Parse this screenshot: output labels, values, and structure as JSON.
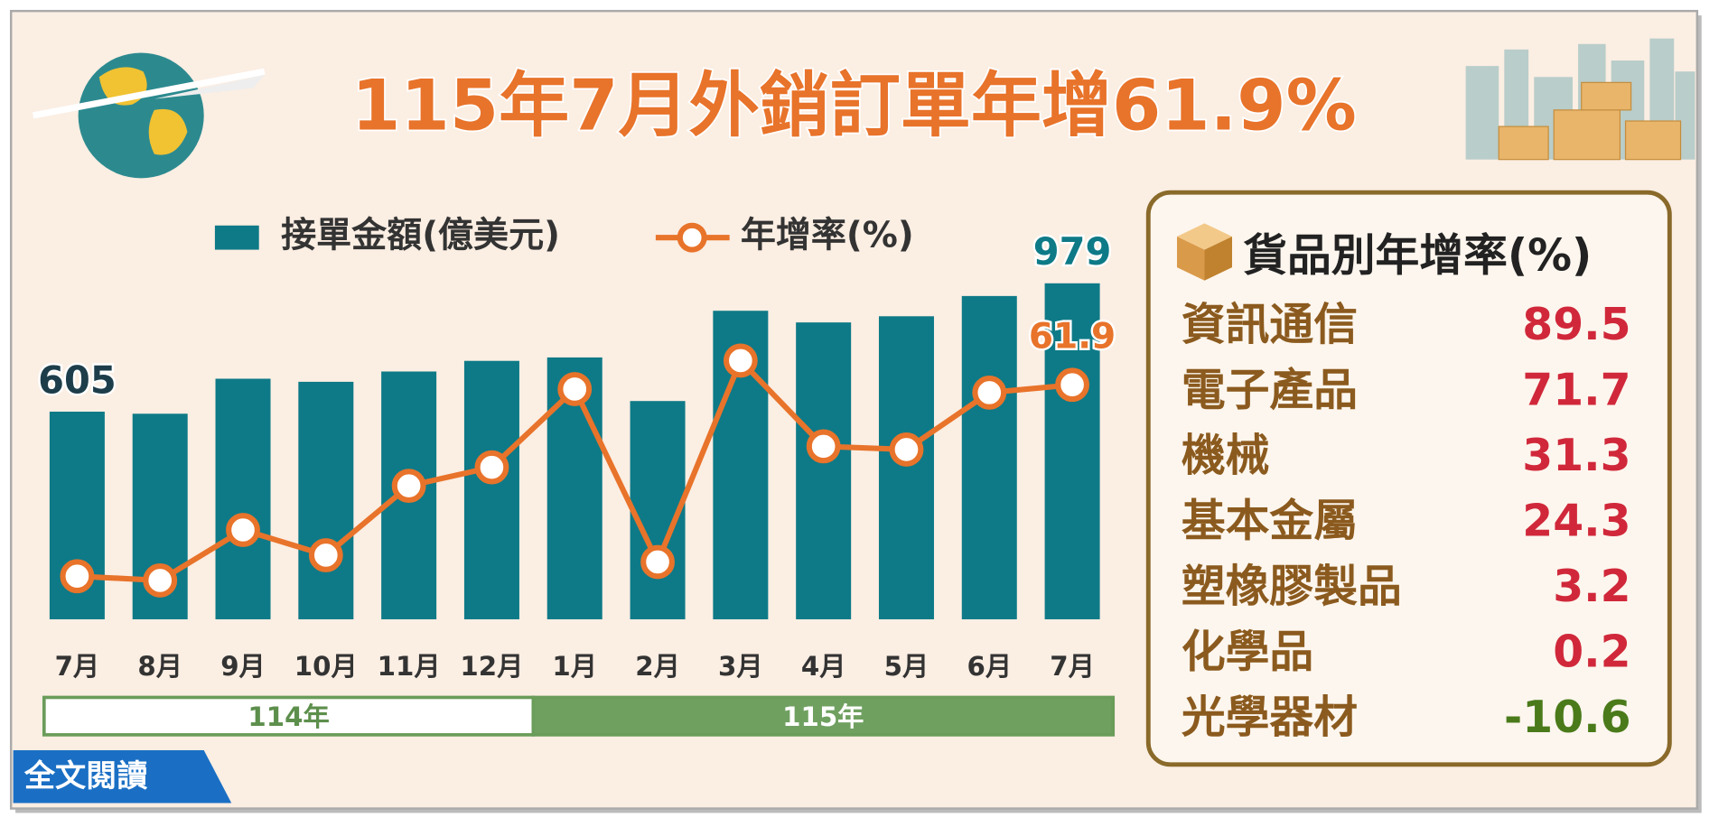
{
  "chart_data": {
    "type": "bar_line",
    "title": "115年7月外銷訂單年增61.9%",
    "categories": [
      "7月",
      "8月",
      "9月",
      "10月",
      "11月",
      "12月",
      "1月",
      "2月",
      "3月",
      "4月",
      "5月",
      "6月",
      "7月"
    ],
    "groups": [
      {
        "label": "114年",
        "from": 0,
        "to": 5
      },
      {
        "label": "115年",
        "from": 6,
        "to": 12
      }
    ],
    "series": [
      {
        "name": "接單金額(億美元)",
        "color": "#0e7a87",
        "kind": "bar",
        "values": [
          605,
          599,
          701,
          692,
          722,
          753,
          763,
          636,
          899,
          865,
          883,
          942,
          979
        ],
        "labeled": [
          0,
          12
        ]
      },
      {
        "name": "年增率(%)",
        "color": "#e8732a",
        "kind": "line",
        "values": [
          8.1,
          6.9,
          21.1,
          14.0,
          33.5,
          38.7,
          60.7,
          12.1,
          68.7,
          44.6,
          43.7,
          59.7,
          61.9
        ],
        "labeled": [
          12
        ]
      }
    ]
  },
  "product_table": {
    "title": "貨品別年增率(%)",
    "positive_color": "#d0283a",
    "negative_color": "#4a7a1a",
    "rows": [
      {
        "name": "資訊通信",
        "value": 89.5
      },
      {
        "name": "電子產品",
        "value": 71.7
      },
      {
        "name": "機械",
        "value": 31.3
      },
      {
        "name": "基本金屬",
        "value": 24.3
      },
      {
        "name": "塑橡膠製品",
        "value": 3.2
      },
      {
        "name": "化學品",
        "value": 0.2
      },
      {
        "name": "光學器材",
        "value": -10.6
      }
    ]
  },
  "button": {
    "label": "全文閱讀"
  }
}
